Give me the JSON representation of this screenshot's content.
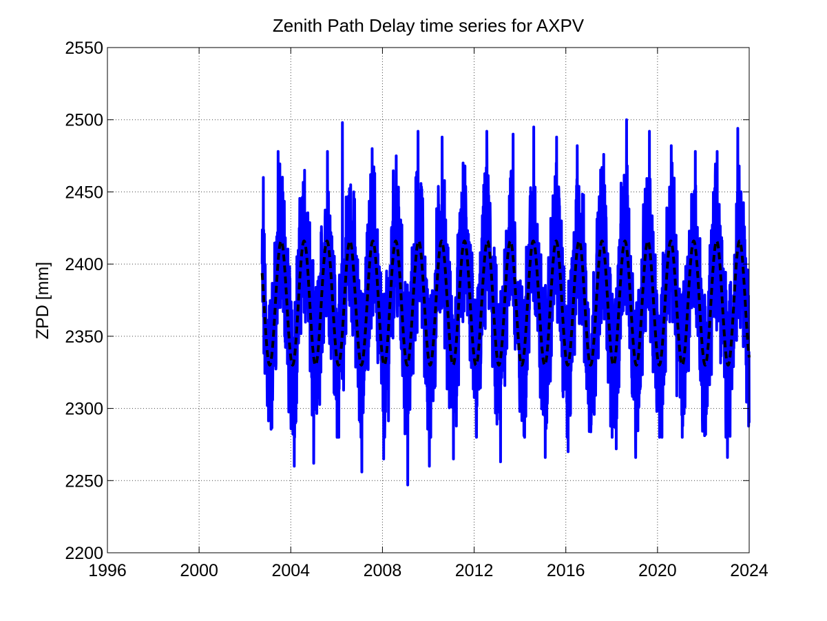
{
  "chart_data": {
    "type": "line",
    "title": "Zenith Path Delay time series for AXPV",
    "xlabel": "",
    "ylabel": "ZPD [mm]",
    "xlim": [
      1996,
      2024
    ],
    "ylim": [
      2200,
      2550
    ],
    "x_ticks": [
      1996,
      2000,
      2004,
      2008,
      2012,
      2016,
      2020,
      2024
    ],
    "y_ticks": [
      2200,
      2250,
      2300,
      2350,
      2400,
      2450,
      2500,
      2550
    ],
    "x_tick_labels": [
      "1996",
      "2000",
      "2004",
      "2008",
      "2012",
      "2016",
      "2020",
      "2024"
    ],
    "y_tick_labels": [
      "2200",
      "2250",
      "2300",
      "2350",
      "2400",
      "2450",
      "2500",
      "2550"
    ],
    "grid": true,
    "data_range": {
      "x_start": 2002.75,
      "x_end": 2024.0
    },
    "series": [
      {
        "color": "#0000ff",
        "style": "solid",
        "description_values": {
          "center": 2373,
          "typical_min": 2260,
          "typical_max": 2495,
          "extremes": {
            "min": 2247,
            "max": 2500
          }
        },
        "peaks": [
          [
            2002.8,
            2460
          ],
          [
            2003.45,
            2478
          ],
          [
            2004.15,
            2260
          ],
          [
            2004.6,
            2465
          ],
          [
            2005.0,
            2262
          ],
          [
            2005.6,
            2478
          ],
          [
            2006.25,
            2498
          ],
          [
            2006.75,
            2450
          ],
          [
            2007.1,
            2256
          ],
          [
            2007.55,
            2480
          ],
          [
            2008.05,
            2265
          ],
          [
            2008.6,
            2475
          ],
          [
            2009.1,
            2247
          ],
          [
            2009.55,
            2492
          ],
          [
            2010.05,
            2260
          ],
          [
            2010.6,
            2488
          ],
          [
            2011.1,
            2265
          ],
          [
            2011.6,
            2468
          ],
          [
            2012.1,
            2280
          ],
          [
            2012.55,
            2492
          ],
          [
            2013.15,
            2263
          ],
          [
            2013.7,
            2490
          ],
          [
            2014.2,
            2280
          ],
          [
            2014.6,
            2495
          ],
          [
            2015.1,
            2266
          ],
          [
            2015.6,
            2488
          ],
          [
            2016.1,
            2270
          ],
          [
            2016.5,
            2482
          ],
          [
            2017.1,
            2290
          ],
          [
            2017.65,
            2476
          ],
          [
            2018.2,
            2272
          ],
          [
            2018.65,
            2500
          ],
          [
            2019.05,
            2266
          ],
          [
            2019.65,
            2492
          ],
          [
            2020.1,
            2290
          ],
          [
            2020.6,
            2482
          ],
          [
            2021.1,
            2288
          ],
          [
            2021.65,
            2478
          ],
          [
            2022.1,
            2282
          ],
          [
            2022.6,
            2478
          ],
          [
            2023.05,
            2266
          ],
          [
            2023.5,
            2494
          ],
          [
            2024.0,
            2290
          ]
        ]
      },
      {
        "color": "#000000",
        "style": "dashed",
        "model": "seasonal fit",
        "mean": 2373,
        "amplitude": 43,
        "period_years": 1.0,
        "peak_phase_year_fraction": 0.58,
        "x_start": 2002.75,
        "x_end": 2024.0
      }
    ]
  }
}
